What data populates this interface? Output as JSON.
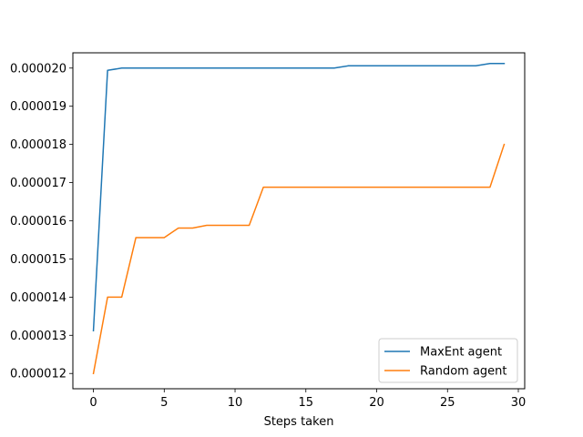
{
  "chart_data": {
    "type": "line",
    "title": "",
    "xlabel": "Steps taken",
    "ylabel": "",
    "xlim": [
      -1.45,
      30.45
    ],
    "ylim": [
      1.16e-05,
      2.04e-05
    ],
    "xticks": [
      0,
      5,
      10,
      15,
      20,
      25,
      30
    ],
    "xtick_labels": [
      "0",
      "5",
      "10",
      "15",
      "20",
      "25",
      "30"
    ],
    "yticks": [
      1.2e-05,
      1.3e-05,
      1.4e-05,
      1.5e-05,
      1.6e-05,
      1.7e-05,
      1.8e-05,
      1.9e-05,
      2e-05
    ],
    "ytick_labels": [
      "0.000012",
      "0.000013",
      "0.000014",
      "0.000015",
      "0.000016",
      "0.000017",
      "0.000018",
      "0.000019",
      "0.000020"
    ],
    "grid": false,
    "legend_position": "lower-right",
    "x": [
      0,
      1,
      2,
      3,
      4,
      5,
      6,
      7,
      8,
      9,
      10,
      11,
      12,
      13,
      14,
      15,
      16,
      17,
      18,
      19,
      20,
      21,
      22,
      23,
      24,
      25,
      26,
      27,
      28,
      29
    ],
    "series": [
      {
        "name": "MaxEnt agent",
        "color": "#1f77b4",
        "values": [
          1.312e-05,
          1.994e-05,
          2e-05,
          2e-05,
          2e-05,
          2e-05,
          2e-05,
          2e-05,
          2e-05,
          2e-05,
          2e-05,
          2e-05,
          2e-05,
          2e-05,
          2e-05,
          2e-05,
          2e-05,
          2e-05,
          2.006e-05,
          2.006e-05,
          2.006e-05,
          2.006e-05,
          2.006e-05,
          2.006e-05,
          2.006e-05,
          2.006e-05,
          2.006e-05,
          2.006e-05,
          2.012e-05,
          2.012e-05
        ]
      },
      {
        "name": "Random agent",
        "color": "#ff7f0e",
        "values": [
          1.2e-05,
          1.4e-05,
          1.4e-05,
          1.556e-05,
          1.556e-05,
          1.556e-05,
          1.581e-05,
          1.581e-05,
          1.588e-05,
          1.588e-05,
          1.588e-05,
          1.588e-05,
          1.688e-05,
          1.688e-05,
          1.688e-05,
          1.688e-05,
          1.688e-05,
          1.688e-05,
          1.688e-05,
          1.688e-05,
          1.688e-05,
          1.688e-05,
          1.688e-05,
          1.688e-05,
          1.688e-05,
          1.688e-05,
          1.688e-05,
          1.688e-05,
          1.688e-05,
          1.8e-05
        ]
      }
    ]
  }
}
